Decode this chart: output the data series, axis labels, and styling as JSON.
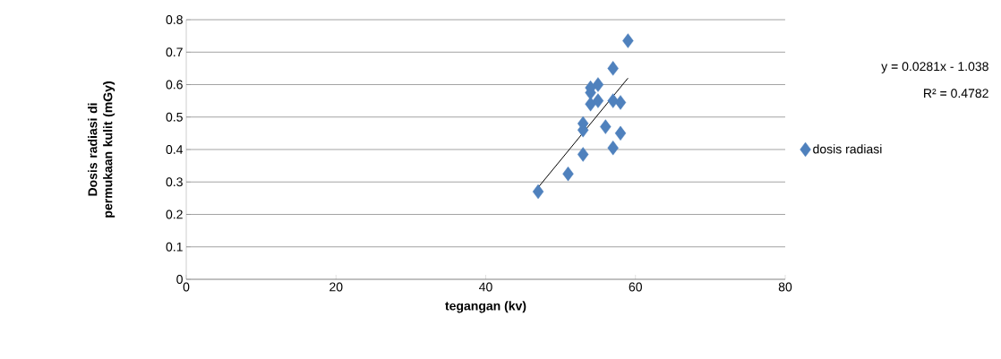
{
  "chart_data": {
    "type": "scatter",
    "xlabel": "tegangan (kv)",
    "ylabel": "Dosis radiasi di permukaan kulit (mGy)",
    "xlim": [
      0,
      80
    ],
    "xticks": [
      0,
      20,
      40,
      60,
      80
    ],
    "ylim": [
      0,
      0.8
    ],
    "yticks": [
      0,
      0.1,
      0.2,
      0.3,
      0.4,
      0.5,
      0.6,
      0.7,
      0.8
    ],
    "grid": "y",
    "legend": "right",
    "marker": "diamond",
    "annotations": [
      "y = 0.0281x - 1.038",
      "R² = 0.4782"
    ],
    "series": [
      {
        "name": "dosis radiasi",
        "color": "#4f81bd",
        "x": [
          47,
          51,
          53,
          53,
          53,
          54,
          54,
          54,
          55,
          55,
          56,
          57,
          57,
          57,
          58,
          58,
          59
        ],
        "values": [
          0.27,
          0.325,
          0.385,
          0.46,
          0.48,
          0.54,
          0.575,
          0.59,
          0.6,
          0.55,
          0.47,
          0.405,
          0.55,
          0.65,
          0.545,
          0.45,
          0.735
        ]
      },
      {
        "type": "line",
        "marker": "none",
        "color": "#000000",
        "x": [
          47,
          59
        ],
        "values": [
          0.283,
          0.62
        ]
      }
    ]
  }
}
